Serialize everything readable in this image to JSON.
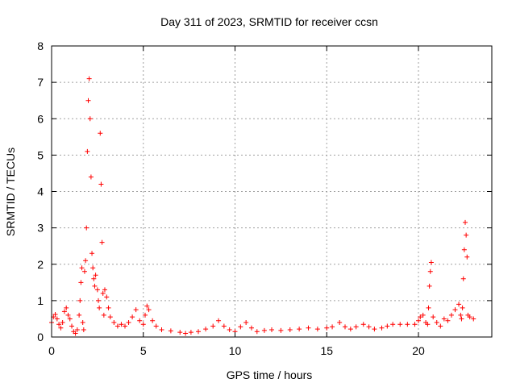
{
  "chart_data": {
    "type": "scatter",
    "title": "Day 311 of 2023, SRMTID for receiver ccsn",
    "xlabel": "GPS time / hours",
    "ylabel": "SRMTID / TECUs",
    "xlim": [
      0,
      24
    ],
    "ylim": [
      0,
      8
    ],
    "grid": true,
    "marker": "+",
    "xticks": [
      {
        "value": 0,
        "label": "0"
      },
      {
        "value": 5,
        "label": "5"
      },
      {
        "value": 10,
        "label": "10"
      },
      {
        "value": 15,
        "label": "15"
      },
      {
        "value": 20,
        "label": "20"
      }
    ],
    "yticks": [
      {
        "value": 0,
        "label": "0"
      },
      {
        "value": 1,
        "label": "1"
      },
      {
        "value": 2,
        "label": "2"
      },
      {
        "value": 3,
        "label": "3"
      },
      {
        "value": 4,
        "label": "4"
      },
      {
        "value": 5,
        "label": "5"
      },
      {
        "value": 6,
        "label": "6"
      },
      {
        "value": 7,
        "label": "7"
      },
      {
        "value": 8,
        "label": "8"
      }
    ],
    "series": [
      {
        "name": "SRMTID",
        "color": "#ff0000",
        "points": [
          [
            0.0,
            0.4
          ],
          [
            0.1,
            0.55
          ],
          [
            0.2,
            0.62
          ],
          [
            0.3,
            0.5
          ],
          [
            0.4,
            0.35
          ],
          [
            0.5,
            0.25
          ],
          [
            0.6,
            0.4
          ],
          [
            0.7,
            0.7
          ],
          [
            0.8,
            0.8
          ],
          [
            0.9,
            0.6
          ],
          [
            1.0,
            0.5
          ],
          [
            1.1,
            0.3
          ],
          [
            1.2,
            0.15
          ],
          [
            1.3,
            0.1
          ],
          [
            1.4,
            0.2
          ],
          [
            1.5,
            0.6
          ],
          [
            1.55,
            1.0
          ],
          [
            1.6,
            1.5
          ],
          [
            1.65,
            1.9
          ],
          [
            1.7,
            0.4
          ],
          [
            1.75,
            0.2
          ],
          [
            1.8,
            1.8
          ],
          [
            1.85,
            2.1
          ],
          [
            1.9,
            3.0
          ],
          [
            1.95,
            5.1
          ],
          [
            2.0,
            6.5
          ],
          [
            2.05,
            7.1
          ],
          [
            2.1,
            6.0
          ],
          [
            2.15,
            4.4
          ],
          [
            2.2,
            2.3
          ],
          [
            2.25,
            1.9
          ],
          [
            2.3,
            1.6
          ],
          [
            2.35,
            1.4
          ],
          [
            2.4,
            1.7
          ],
          [
            2.5,
            1.3
          ],
          [
            2.55,
            1.0
          ],
          [
            2.6,
            0.8
          ],
          [
            2.65,
            5.6
          ],
          [
            2.7,
            4.2
          ],
          [
            2.75,
            2.6
          ],
          [
            2.8,
            1.2
          ],
          [
            2.85,
            0.6
          ],
          [
            2.9,
            1.3
          ],
          [
            3.0,
            1.1
          ],
          [
            3.1,
            0.8
          ],
          [
            3.2,
            0.55
          ],
          [
            3.4,
            0.4
          ],
          [
            3.6,
            0.3
          ],
          [
            3.8,
            0.35
          ],
          [
            4.0,
            0.3
          ],
          [
            4.2,
            0.4
          ],
          [
            4.4,
            0.55
          ],
          [
            4.6,
            0.75
          ],
          [
            4.8,
            0.45
          ],
          [
            5.0,
            0.35
          ],
          [
            5.1,
            0.6
          ],
          [
            5.2,
            0.85
          ],
          [
            5.3,
            0.75
          ],
          [
            5.5,
            0.45
          ],
          [
            5.7,
            0.3
          ],
          [
            6.0,
            0.2
          ],
          [
            6.5,
            0.17
          ],
          [
            7.0,
            0.13
          ],
          [
            7.3,
            0.1
          ],
          [
            7.6,
            0.13
          ],
          [
            8.0,
            0.15
          ],
          [
            8.4,
            0.22
          ],
          [
            8.8,
            0.3
          ],
          [
            9.1,
            0.45
          ],
          [
            9.4,
            0.3
          ],
          [
            9.7,
            0.2
          ],
          [
            10.0,
            0.15
          ],
          [
            10.3,
            0.28
          ],
          [
            10.6,
            0.4
          ],
          [
            10.9,
            0.25
          ],
          [
            11.2,
            0.15
          ],
          [
            11.6,
            0.18
          ],
          [
            12.0,
            0.2
          ],
          [
            12.5,
            0.18
          ],
          [
            13.0,
            0.2
          ],
          [
            13.5,
            0.22
          ],
          [
            14.0,
            0.25
          ],
          [
            14.5,
            0.22
          ],
          [
            15.0,
            0.25
          ],
          [
            15.3,
            0.28
          ],
          [
            15.7,
            0.4
          ],
          [
            16.0,
            0.28
          ],
          [
            16.3,
            0.22
          ],
          [
            16.6,
            0.28
          ],
          [
            17.0,
            0.35
          ],
          [
            17.3,
            0.28
          ],
          [
            17.6,
            0.22
          ],
          [
            18.0,
            0.25
          ],
          [
            18.3,
            0.3
          ],
          [
            18.6,
            0.35
          ],
          [
            19.0,
            0.35
          ],
          [
            19.4,
            0.35
          ],
          [
            19.8,
            0.35
          ],
          [
            20.0,
            0.45
          ],
          [
            20.1,
            0.55
          ],
          [
            20.25,
            0.6
          ],
          [
            20.4,
            0.4
          ],
          [
            20.5,
            0.35
          ],
          [
            20.55,
            0.8
          ],
          [
            20.6,
            1.4
          ],
          [
            20.65,
            1.8
          ],
          [
            20.7,
            2.05
          ],
          [
            20.8,
            0.55
          ],
          [
            21.0,
            0.4
          ],
          [
            21.2,
            0.3
          ],
          [
            21.4,
            0.5
          ],
          [
            21.6,
            0.45
          ],
          [
            21.8,
            0.6
          ],
          [
            22.0,
            0.75
          ],
          [
            22.2,
            0.9
          ],
          [
            22.3,
            0.6
          ],
          [
            22.35,
            0.5
          ],
          [
            22.4,
            0.8
          ],
          [
            22.45,
            1.6
          ],
          [
            22.5,
            2.4
          ],
          [
            22.55,
            3.15
          ],
          [
            22.6,
            2.8
          ],
          [
            22.65,
            2.2
          ],
          [
            22.7,
            0.6
          ],
          [
            22.8,
            0.55
          ],
          [
            23.0,
            0.5
          ]
        ]
      }
    ]
  }
}
